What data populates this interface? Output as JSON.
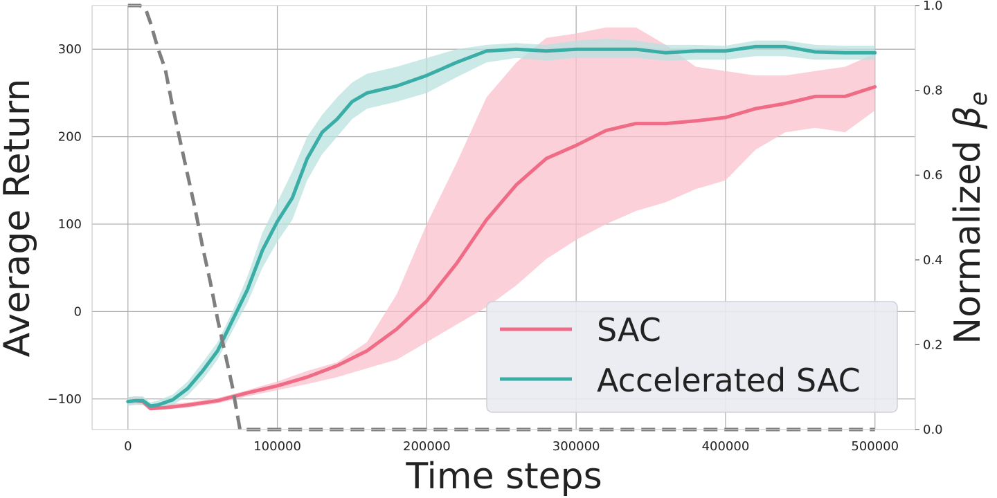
{
  "chart_data": {
    "type": "line",
    "xlabel": "Time steps",
    "ylabel": "Average Return",
    "y2label_main": "Normalized ",
    "y2label_symbol": "β",
    "y2label_sub": "e",
    "xlim": [
      -24000,
      527000
    ],
    "ylim": [
      -135,
      350
    ],
    "y2lim": [
      0,
      1
    ],
    "grid": true,
    "legend_position": "lower-right",
    "x_ticks": [
      0,
      100000,
      200000,
      300000,
      400000,
      500000
    ],
    "x_tick_labels": [
      "0",
      "100000",
      "200000",
      "300000",
      "400000",
      "500000"
    ],
    "y_ticks": [
      -100,
      0,
      100,
      200,
      300
    ],
    "y_tick_labels": [
      "−100",
      "0",
      "100",
      "200",
      "300"
    ],
    "y2_ticks": [
      0,
      0.2,
      0.4,
      0.6,
      0.8,
      1.0
    ],
    "y2_tick_labels": [
      "0.0",
      "0.2",
      "0.4",
      "0.6",
      "0.8",
      "1.0"
    ],
    "series": [
      {
        "name": "SAC",
        "color": "#f06b85",
        "band_color": "#f9c0cc",
        "x": [
          0,
          5000,
          10000,
          15000,
          25000,
          40000,
          60000,
          80000,
          100000,
          120000,
          140000,
          160000,
          180000,
          200000,
          220000,
          240000,
          260000,
          280000,
          300000,
          320000,
          340000,
          360000,
          380000,
          400000,
          420000,
          440000,
          460000,
          480000,
          500000
        ],
        "mean": [
          -103,
          -102,
          -103,
          -111,
          -110,
          -107,
          -102,
          -93,
          -85,
          -75,
          -62,
          -45,
          -20,
          12,
          55,
          105,
          145,
          175,
          190,
          207,
          215,
          215,
          218,
          222,
          232,
          238,
          246,
          246,
          257
        ],
        "upper": [
          -98,
          -97,
          -98,
          -108,
          -106,
          -104,
          -99,
          -90,
          -80,
          -68,
          -58,
          -35,
          20,
          100,
          170,
          245,
          285,
          313,
          318,
          325,
          325,
          305,
          280,
          275,
          270,
          270,
          275,
          280,
          295
        ],
        "lower": [
          -107,
          -106,
          -107,
          -113,
          -112,
          -110,
          -105,
          -97,
          -90,
          -83,
          -75,
          -65,
          -55,
          -35,
          -15,
          5,
          30,
          60,
          82,
          100,
          115,
          125,
          140,
          150,
          185,
          205,
          210,
          205,
          230
        ]
      },
      {
        "name": "Accelerated SAC",
        "color": "#3aaea6",
        "band_color": "#b8e2df",
        "x": [
          0,
          5000,
          10000,
          15000,
          20000,
          30000,
          40000,
          50000,
          60000,
          70000,
          80000,
          90000,
          100000,
          110000,
          120000,
          130000,
          140000,
          150000,
          160000,
          180000,
          200000,
          220000,
          240000,
          260000,
          280000,
          300000,
          320000,
          340000,
          360000,
          380000,
          400000,
          420000,
          440000,
          460000,
          480000,
          500000
        ],
        "mean": [
          -103,
          -102,
          -102,
          -108,
          -107,
          -101,
          -88,
          -68,
          -45,
          -10,
          25,
          70,
          103,
          130,
          175,
          205,
          220,
          240,
          250,
          258,
          270,
          285,
          298,
          300,
          298,
          300,
          300,
          300,
          296,
          298,
          298,
          303,
          303,
          297,
          296,
          296
        ],
        "upper": [
          -98,
          -97,
          -97,
          -104,
          -102,
          -95,
          -80,
          -58,
          -35,
          0,
          40,
          90,
          125,
          160,
          200,
          225,
          245,
          262,
          272,
          280,
          290,
          300,
          305,
          307,
          305,
          310,
          312,
          310,
          305,
          305,
          304,
          310,
          310,
          305,
          304,
          304
        ],
        "lower": [
          -108,
          -107,
          -107,
          -112,
          -111,
          -107,
          -96,
          -78,
          -55,
          -22,
          10,
          50,
          80,
          105,
          150,
          180,
          200,
          220,
          232,
          240,
          250,
          268,
          285,
          290,
          287,
          290,
          290,
          290,
          287,
          288,
          288,
          292,
          292,
          288,
          288,
          288
        ]
      }
    ],
    "beta_curve": {
      "name": "β_e",
      "color": "#7f7f7f",
      "style": "dashed",
      "axis": "right",
      "x": [
        0,
        8000,
        12000,
        15000,
        20000,
        25000,
        30000,
        35000,
        40000,
        45000,
        50000,
        55000,
        60000,
        65000,
        70000,
        75000,
        80000,
        500000
      ],
      "y": [
        1.0,
        1.0,
        0.99,
        0.96,
        0.9,
        0.85,
        0.76,
        0.68,
        0.6,
        0.52,
        0.43,
        0.35,
        0.26,
        0.18,
        0.1,
        0.0,
        0.0,
        0.0
      ]
    }
  }
}
